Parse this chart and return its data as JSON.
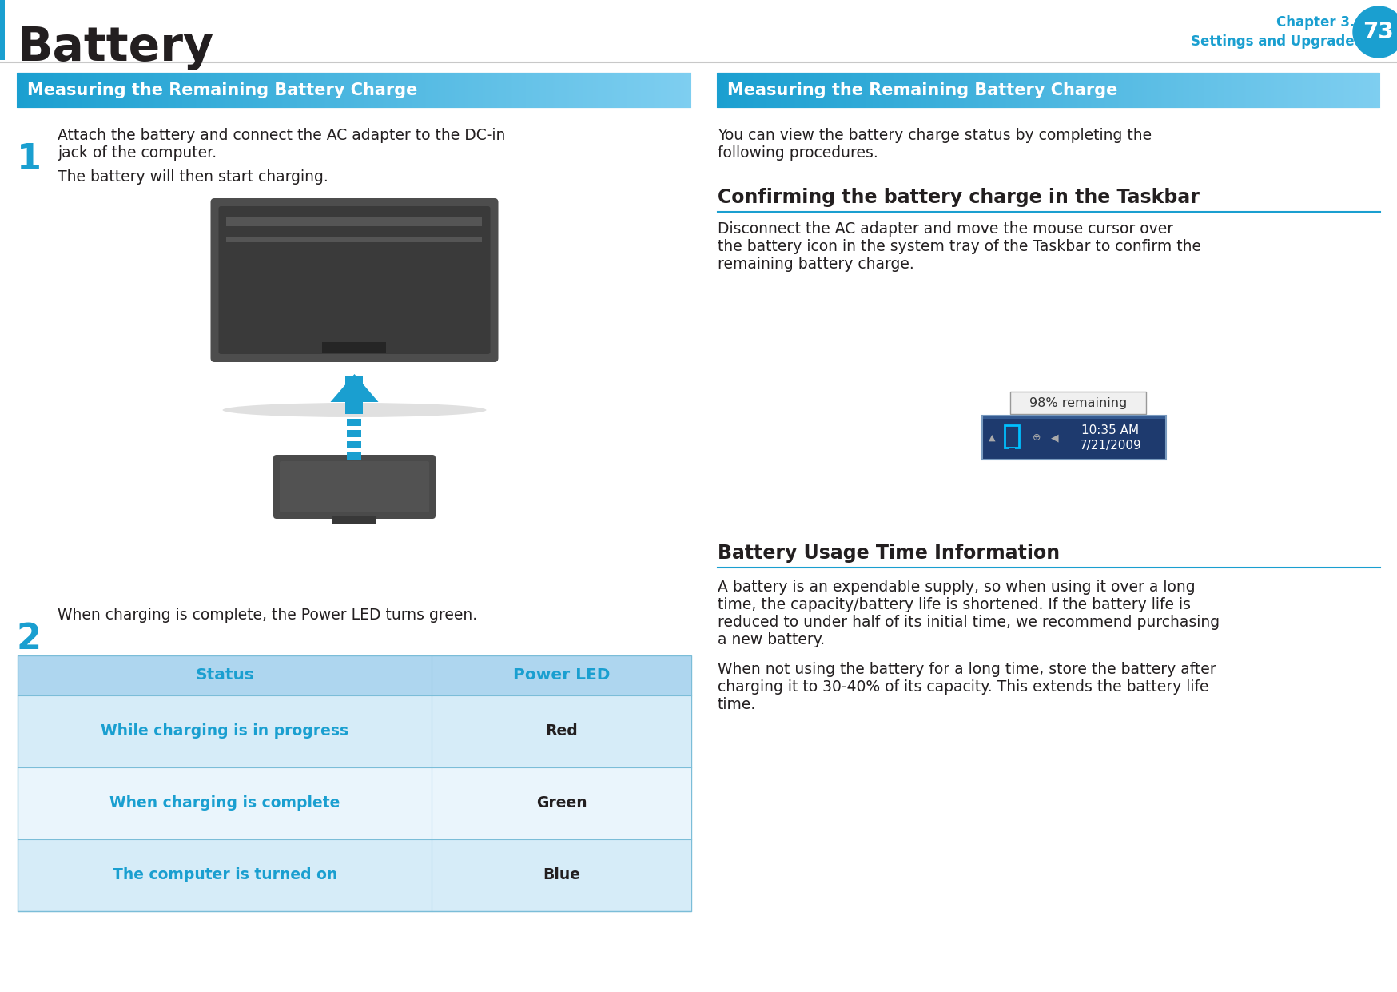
{
  "page_bg": "#ffffff",
  "header_title": "Battery",
  "header_title_color": "#231f20",
  "chapter_line1": "Chapter 3.",
  "chapter_line2": "Settings and Upgrade",
  "chapter_text_color": "#1a9fd0",
  "page_num": "73",
  "page_num_color": "#ffffff",
  "circle_color": "#1a9fd0",
  "header_line_color": "#c8c8c8",
  "left_section_header": "Measuring the Remaining Battery Charge",
  "right_section_header": "Measuring the Remaining Battery Charge",
  "section_header_bg_dark": "#1a9fd0",
  "section_header_bg_light": "#7ecef0",
  "section_header_text_color": "#ffffff",
  "step1_num": "1",
  "step1_num_color": "#1a9fd0",
  "step1_text1": "Attach the battery and connect the AC adapter to the DC-in",
  "step1_text2": "jack of the computer.",
  "step1_subtext": "The battery will then start charging.",
  "step2_num": "2",
  "step2_num_color": "#1a9fd0",
  "step2_text": "When charging is complete, the Power LED turns green.",
  "table_header_bg": "#aed6ef",
  "table_row1_bg": "#d6ecf8",
  "table_row2_bg": "#eaf5fc",
  "table_row3_bg": "#d6ecf8",
  "table_header_text_color": "#1a9fd0",
  "table_row_text_color": "#1a9fd0",
  "table_value_text_color": "#231f20",
  "table_border_color": "#7bbdd8",
  "table_col1": "Status",
  "table_col2": "Power LED",
  "table_rows": [
    [
      "While charging is in progress",
      "Red"
    ],
    [
      "When charging is complete",
      "Green"
    ],
    [
      "The computer is turned on",
      "Blue"
    ]
  ],
  "right_intro_text1": "You can view the battery charge status by completing the",
  "right_intro_text2": "following procedures.",
  "confirming_header": "Confirming the battery charge in the Taskbar",
  "confirming_header_color": "#231f20",
  "confirming_line_color": "#1a9fd0",
  "confirming_text1": "Disconnect the AC adapter and move the mouse cursor over",
  "confirming_text2": "the battery icon in the system tray of the Taskbar to confirm the",
  "confirming_text3": "remaining battery charge.",
  "battery_usage_header": "Battery Usage Time Information",
  "battery_usage_header_color": "#231f20",
  "battery_usage_line_color": "#1a9fd0",
  "battery_usage_text1a": "A battery is an expendable supply, so when using it over a long",
  "battery_usage_text1b": "time, the capacity/battery life is shortened. If the battery life is",
  "battery_usage_text1c": "reduced to under half of its initial time, we recommend purchasing",
  "battery_usage_text1d": "a new battery.",
  "battery_usage_text2a": "When not using the battery for a long time, store the battery after",
  "battery_usage_text2b": "charging it to 30-40% of its capacity. This extends the battery life",
  "battery_usage_text2c": "time.",
  "body_text_color": "#231f20",
  "divider_color": "#dddddd",
  "left_blue_bar_color": "#1a9fd0",
  "taskbar_bg": "#1e3a6e",
  "taskbar_tooltip_bg": "#f0f0f0",
  "taskbar_tooltip_border": "#999999",
  "taskbar_tooltip_text": "98% remaining",
  "taskbar_time": "10:35 AM",
  "taskbar_date": "7/21/2009",
  "taskbar_border_color": "#7a9bbf"
}
